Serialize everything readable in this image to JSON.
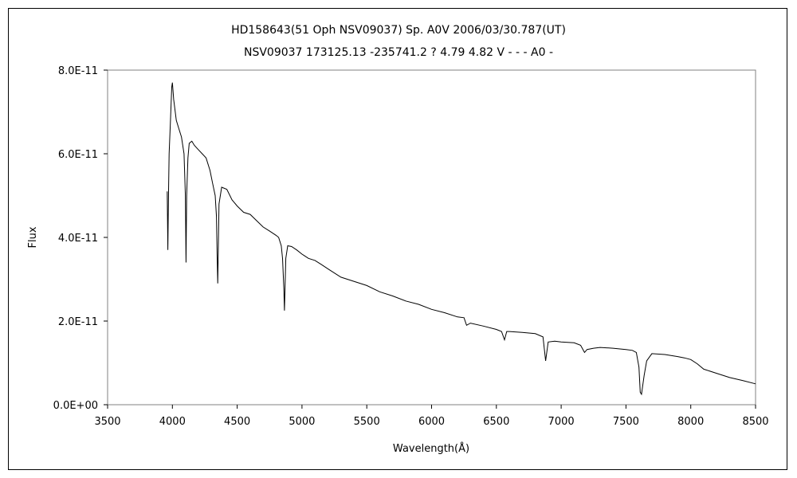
{
  "chart_data": {
    "type": "line",
    "title": "HD158643(51 Oph   NSV09037)   Sp. A0V   2006/03/30.787(UT)",
    "subtitle": "NSV09037 173125.13 -235741.2 ? 4.79  4.82  V - - - A0 -",
    "xlabel": "Wavelength(Å)",
    "ylabel": "Flux",
    "xlim": [
      3500,
      8500
    ],
    "ylim": [
      0,
      8e-11
    ],
    "x_ticks": [
      3500,
      4000,
      4500,
      5000,
      5500,
      6000,
      6500,
      7000,
      7500,
      8000,
      8500
    ],
    "x_tick_labels": [
      "3500",
      "4000",
      "4500",
      "5000",
      "5500",
      "6000",
      "6500",
      "7000",
      "7500",
      "8000",
      "8500"
    ],
    "y_ticks": [
      0,
      2e-11,
      4e-11,
      6e-11,
      8e-11
    ],
    "y_tick_labels": [
      "0.0E+00",
      "2.0E-11",
      "4.0E-11",
      "6.0E-11",
      "8.0E-11"
    ],
    "grid": false,
    "legend": "none",
    "line_color": "#000000",
    "series": [
      {
        "x": [
          3960,
          3965,
          3970,
          3975,
          3985,
          3995,
          4000,
          4010,
          4030,
          4050,
          4070,
          4090,
          4100,
          4105,
          4110,
          4120,
          4130,
          4150,
          4170,
          4200,
          4230,
          4260,
          4290,
          4310,
          4330,
          4340,
          4345,
          4350,
          4360,
          4380,
          4420,
          4460,
          4500,
          4550,
          4600,
          4650,
          4700,
          4750,
          4800,
          4820,
          4840,
          4850,
          4860,
          4865,
          4875,
          4890,
          4920,
          4960,
          5000,
          5050,
          5100,
          5150,
          5200,
          5300,
          5400,
          5500,
          5600,
          5700,
          5800,
          5900,
          6000,
          6100,
          6200,
          6250,
          6270,
          6300,
          6400,
          6500,
          6540,
          6563,
          6580,
          6600,
          6700,
          6800,
          6860,
          6880,
          6900,
          6950,
          7000,
          7100,
          7150,
          7180,
          7200,
          7250,
          7300,
          7400,
          7500,
          7550,
          7580,
          7600,
          7610,
          7620,
          7640,
          7660,
          7700,
          7800,
          7900,
          7950,
          8000,
          8050,
          8100,
          8200,
          8300,
          8400,
          8500
        ],
        "y": [
          5.1e-11,
          3.7e-11,
          5e-11,
          6e-11,
          6.8e-11,
          7.6e-11,
          7.7e-11,
          7.3e-11,
          6.8e-11,
          6.6e-11,
          6.4e-11,
          6e-11,
          5e-11,
          3.4e-11,
          5e-11,
          5.9e-11,
          6.25e-11,
          6.3e-11,
          6.2e-11,
          6.1e-11,
          6e-11,
          5.9e-11,
          5.6e-11,
          5.3e-11,
          5e-11,
          4.5e-11,
          3.6e-11,
          2.9e-11,
          4.8e-11,
          5.2e-11,
          5.15e-11,
          4.9e-11,
          4.75e-11,
          4.6e-11,
          4.55e-11,
          4.4e-11,
          4.25e-11,
          4.15e-11,
          4.05e-11,
          4e-11,
          3.8e-11,
          3.5e-11,
          2.8e-11,
          2.25e-11,
          3.5e-11,
          3.8e-11,
          3.78e-11,
          3.7e-11,
          3.6e-11,
          3.5e-11,
          3.45e-11,
          3.35e-11,
          3.25e-11,
          3.05e-11,
          2.95e-11,
          2.85e-11,
          2.7e-11,
          2.6e-11,
          2.48e-11,
          2.4e-11,
          2.28e-11,
          2.2e-11,
          2.1e-11,
          2.08e-11,
          1.9e-11,
          1.95e-11,
          1.88e-11,
          1.8e-11,
          1.75e-11,
          1.55e-11,
          1.75e-11,
          1.75e-11,
          1.73e-11,
          1.7e-11,
          1.62e-11,
          1.05e-11,
          1.5e-11,
          1.52e-11,
          1.5e-11,
          1.48e-11,
          1.42e-11,
          1.25e-11,
          1.32e-11,
          1.35e-11,
          1.37e-11,
          1.35e-11,
          1.32e-11,
          1.3e-11,
          1.25e-11,
          9e-12,
          3e-12,
          2.5e-12,
          7e-12,
          1.05e-11,
          1.22e-11,
          1.2e-11,
          1.15e-11,
          1.12e-11,
          1.08e-11,
          9.8e-12,
          8.5e-12,
          7.5e-12,
          6.5e-12,
          5.8e-12,
          5e-12
        ]
      }
    ]
  }
}
